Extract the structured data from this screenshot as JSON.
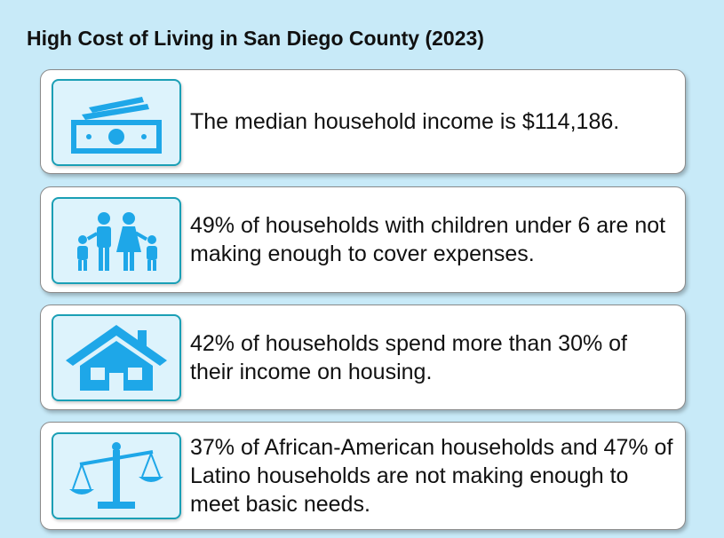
{
  "title": "High Cost of Living in San Diego County (2023)",
  "items": [
    {
      "text": "The median household income is $114,186."
    },
    {
      "text": "49% of households with children under 6 are not making enough to cover expenses."
    },
    {
      "text": "42% of households spend more than 30% of their income on housing."
    },
    {
      "text": "37% of African-American households and 47% of Latino households are not making enough to meet basic needs."
    }
  ]
}
